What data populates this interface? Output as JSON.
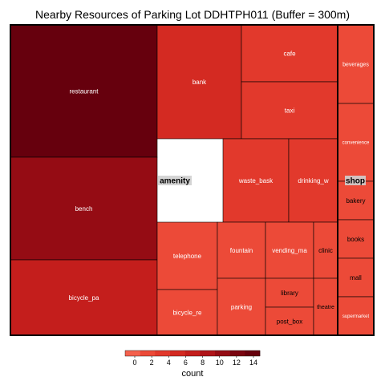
{
  "chart_data": {
    "type": "treemap",
    "title": "Nearby Resources of Parking Lot DDHTPH011 (Buffer = 300m)",
    "groups": [
      {
        "name": "amenity",
        "tiles": [
          {
            "name": "restaurant",
            "value": 15
          },
          {
            "name": "bench",
            "value": 11
          },
          {
            "name": "bicycle_pa",
            "value": 8
          },
          {
            "name": "bank",
            "value": 6
          },
          {
            "name": "cafe",
            "value": 4
          },
          {
            "name": "taxi",
            "value": 4
          },
          {
            "name": "amenity",
            "value": 4
          },
          {
            "name": "waste_bask",
            "value": 3
          },
          {
            "name": "drinking_w",
            "value": 3
          },
          {
            "name": "telephone",
            "value": 2
          },
          {
            "name": "fountain",
            "value": 2
          },
          {
            "name": "vending_ma",
            "value": 2
          },
          {
            "name": "clinic",
            "value": 1
          },
          {
            "name": "bicycle_re",
            "value": 2
          },
          {
            "name": "parking",
            "value": 2
          },
          {
            "name": "library",
            "value": 1
          },
          {
            "name": "post_box",
            "value": 1
          },
          {
            "name": "theatre",
            "value": 1
          }
        ]
      },
      {
        "name": "shop",
        "tiles": [
          {
            "name": "beverages",
            "value": 1
          },
          {
            "name": "convenience",
            "value": 1
          },
          {
            "name": "shop",
            "value": 1
          },
          {
            "name": "bakery",
            "value": 1
          },
          {
            "name": "books",
            "value": 1
          },
          {
            "name": "mall",
            "value": 1
          },
          {
            "name": "supermarket",
            "value": 1
          }
        ]
      }
    ],
    "legend": {
      "title": "count",
      "ticks": [
        "0",
        "2",
        "4",
        "6",
        "8",
        "10",
        "12",
        "14"
      ],
      "range": [
        0,
        15
      ]
    },
    "colors": {
      "scale": [
        "#f4614d",
        "#ec4a38",
        "#e2392c",
        "#d42a22",
        "#c41e1c",
        "#b01419",
        "#950c14",
        "#7a0510",
        "#66000d"
      ]
    }
  }
}
